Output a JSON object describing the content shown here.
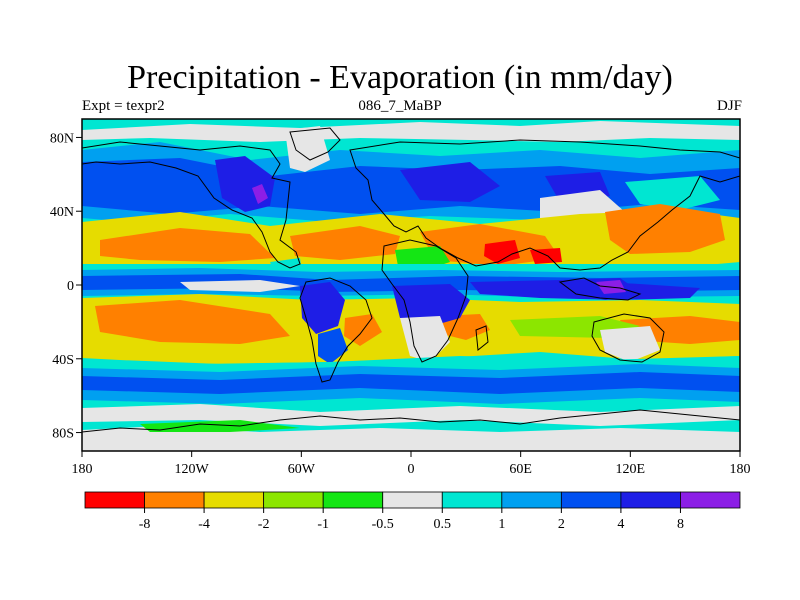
{
  "title": "Precipitation - Evaporation (in mm/day)",
  "subtitle_left": "Expt = texpr2",
  "subtitle_center": "086_7_MaBP",
  "subtitle_right": "DJF",
  "lon_ticks": [
    "180",
    "120W",
    "60W",
    "0",
    "60E",
    "120E",
    "180"
  ],
  "lat_ticks": [
    "80N",
    "40N",
    "0",
    "40S",
    "80S"
  ],
  "colorbar": {
    "colors": [
      "#ff0000",
      "#ff8000",
      "#e6dc00",
      "#8ce600",
      "#14e614",
      "#e6e6e6",
      "#00e6d2",
      "#00a0f0",
      "#0050f0",
      "#1e1ee6",
      "#8c1ee6"
    ],
    "labels": [
      "-8",
      "-4",
      "-2",
      "-1",
      "-0.5",
      "0.5",
      "1",
      "2",
      "4",
      "8"
    ]
  },
  "palette": {
    "red": "#ff0000",
    "orange": "#ff8000",
    "yellow": "#e6dc00",
    "yellowgreen": "#8ce600",
    "green": "#14e614",
    "gray": "#e6e6e6",
    "cyan": "#00e6d2",
    "lightblue": "#00a0f0",
    "blue": "#0050f0",
    "darkblue": "#1e1ee6",
    "purple": "#8c1ee6"
  }
}
